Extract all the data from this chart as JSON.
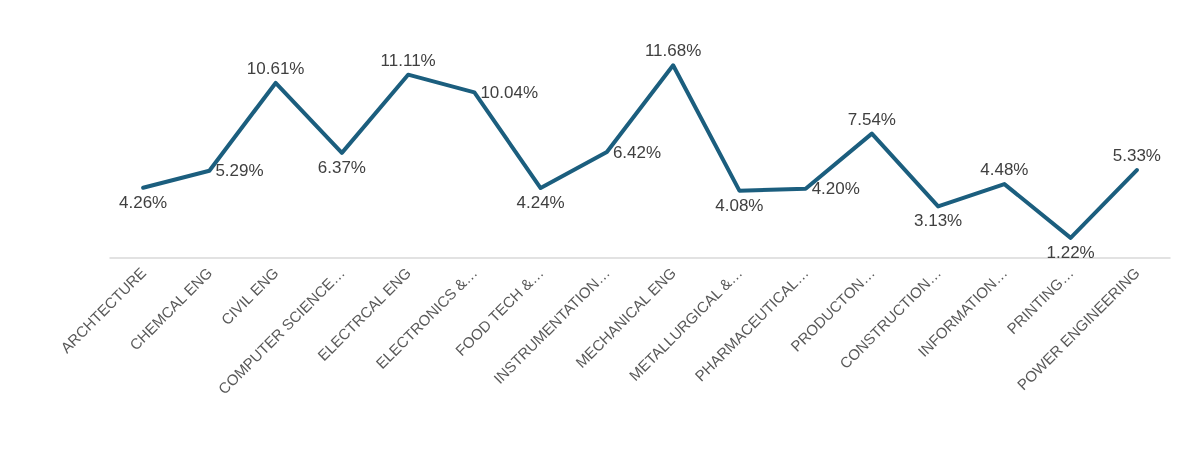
{
  "chart_data": {
    "type": "line",
    "categories": [
      "ARCHTECTURE",
      "CHEMCAL ENG",
      "CIVIL ENG",
      "COMPUTER SCIENCE…",
      "ELECTRCAL ENG",
      "ELECTRONICS &…",
      "FOOD TECH &…",
      "INSTRUMENTATION…",
      "MECHANICAL ENG",
      "METALLURGICAL &…",
      "PHARMACEUTICAL…",
      "PRODUCTON…",
      "CONSTRUCTION…",
      "INFORMATION…",
      "PRINTING…",
      "POWER ENGINEERING"
    ],
    "values": [
      4.26,
      5.29,
      10.61,
      6.37,
      11.11,
      10.04,
      4.24,
      6.42,
      11.68,
      4.08,
      4.2,
      7.54,
      3.13,
      4.48,
      1.22,
      5.33
    ],
    "value_labels": [
      "4.26%",
      "5.29%",
      "10.61%",
      "6.37%",
      "11.11%",
      "10.04%",
      "4.24%",
      "6.42%",
      "11.68%",
      "4.08%",
      "4.20%",
      "7.54%",
      "3.13%",
      "4.48%",
      "1.22%",
      "5.33%"
    ],
    "color": "#1b5e7e",
    "marker": "none",
    "line_style": "solid"
  }
}
